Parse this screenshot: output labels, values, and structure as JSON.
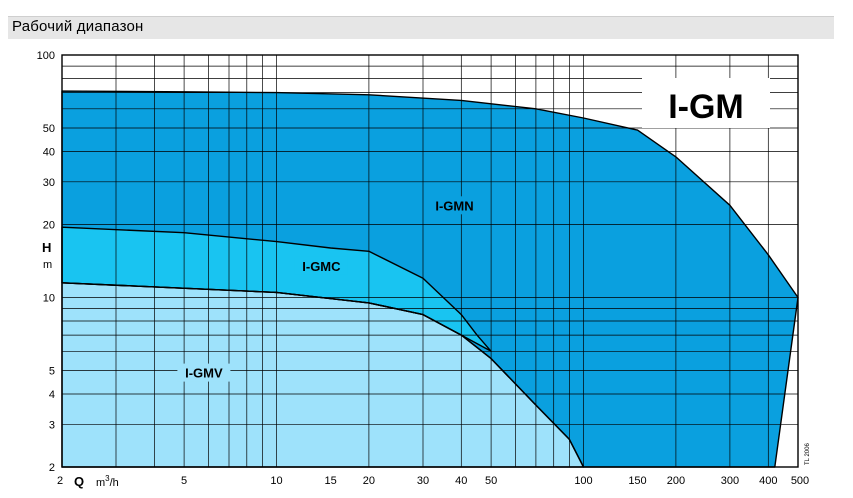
{
  "header": {
    "title": "Рабочий диапазон"
  },
  "chart_data": {
    "type": "area",
    "title": "",
    "xlabel": {
      "letter": "Q",
      "unit_base": "m",
      "unit_exp": "3",
      "unit_tail": "/h"
    },
    "ylabel": {
      "letter": "H",
      "unit": "m"
    },
    "x_scale": "log",
    "y_scale": "log",
    "xlim": [
      2,
      500
    ],
    "ylim": [
      2,
      100
    ],
    "grid": true,
    "x_tick_labels": [
      {
        "v": 2,
        "t": "2"
      },
      {
        "v": 5,
        "t": "5"
      },
      {
        "v": 10,
        "t": "10"
      },
      {
        "v": 15,
        "t": "15"
      },
      {
        "v": 20,
        "t": "20"
      },
      {
        "v": 30,
        "t": "30"
      },
      {
        "v": 40,
        "t": "40"
      },
      {
        "v": 50,
        "t": "50"
      },
      {
        "v": 100,
        "t": "100"
      },
      {
        "v": 150,
        "t": "150"
      },
      {
        "v": 200,
        "t": "200"
      },
      {
        "v": 300,
        "t": "300"
      },
      {
        "v": 400,
        "t": "400"
      },
      {
        "v": 500,
        "t": "500"
      }
    ],
    "y_tick_labels": [
      {
        "v": 2,
        "t": "2"
      },
      {
        "v": 3,
        "t": "3"
      },
      {
        "v": 4,
        "t": "4"
      },
      {
        "v": 5,
        "t": "5"
      },
      {
        "v": 10,
        "t": "10"
      },
      {
        "v": 20,
        "t": "20"
      },
      {
        "v": 30,
        "t": "30"
      },
      {
        "v": 40,
        "t": "40"
      },
      {
        "v": 50,
        "t": "50"
      },
      {
        "v": 100,
        "t": "100"
      }
    ],
    "brand": "I-GM",
    "code": "TL 2006",
    "series": [
      {
        "name": "I-GMN",
        "color": "#0aa0df",
        "label_at": [
          38,
          24
        ],
        "boundary": [
          [
            2,
            71
          ],
          [
            5,
            70.5
          ],
          [
            10,
            70
          ],
          [
            20,
            68.5
          ],
          [
            40,
            65
          ],
          [
            70,
            60
          ],
          [
            100,
            55
          ],
          [
            150,
            49
          ],
          [
            200,
            38
          ],
          [
            300,
            24
          ],
          [
            400,
            15
          ],
          [
            500,
            10
          ],
          [
            420,
            2
          ],
          [
            100,
            2
          ],
          [
            90,
            2.6
          ],
          [
            70,
            3.6
          ],
          [
            50,
            5.6
          ],
          [
            40,
            7
          ],
          [
            30,
            8.5
          ],
          [
            20,
            9.5
          ],
          [
            10,
            10.5
          ],
          [
            2,
            11.5
          ]
        ]
      },
      {
        "name": "I-GMC",
        "color": "#19c4f1",
        "label_at": [
          14,
          13.5
        ],
        "boundary": [
          [
            2,
            19.5
          ],
          [
            5,
            18.5
          ],
          [
            10,
            17
          ],
          [
            15,
            16
          ],
          [
            20,
            15.5
          ],
          [
            30,
            12
          ],
          [
            40,
            8.5
          ],
          [
            45,
            7
          ],
          [
            50,
            6
          ],
          [
            40,
            7
          ],
          [
            30,
            8.5
          ],
          [
            20,
            9.5
          ],
          [
            10,
            10.5
          ],
          [
            2,
            11.5
          ]
        ]
      },
      {
        "name": "I-GMV",
        "color": "#9ee2fb",
        "label_at": [
          5.8,
          4.9
        ],
        "boundary": [
          [
            2,
            11.5
          ],
          [
            10,
            10.5
          ],
          [
            20,
            9.5
          ],
          [
            30,
            8.5
          ],
          [
            40,
            7
          ],
          [
            50,
            5.6
          ],
          [
            70,
            3.6
          ],
          [
            90,
            2.6
          ],
          [
            100,
            2
          ],
          [
            2,
            2
          ]
        ]
      }
    ]
  }
}
